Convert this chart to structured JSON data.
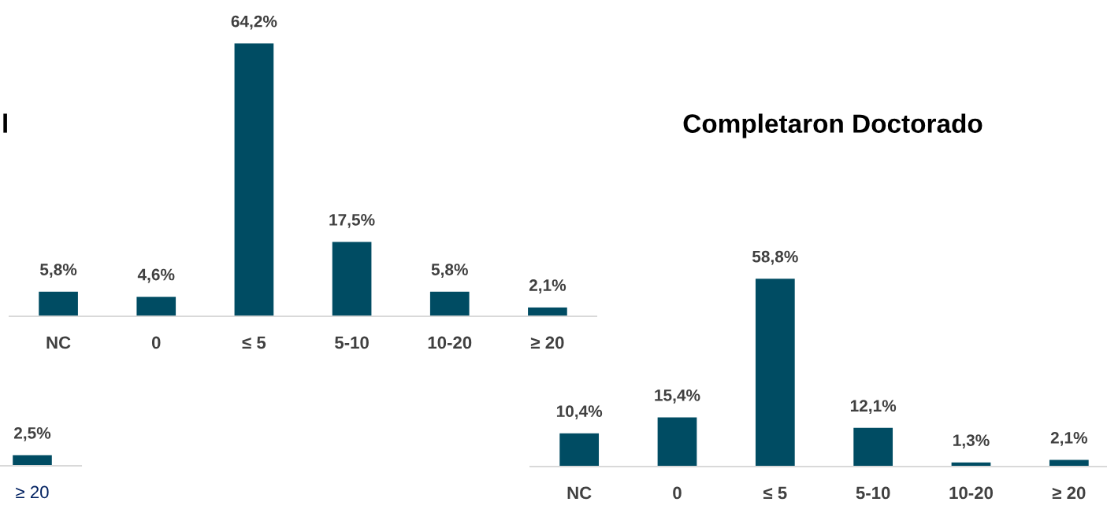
{
  "chart_data": [
    {
      "type": "bar",
      "title": "l",
      "categories": [
        "NC",
        "0",
        "≤ 5",
        "5-10",
        "10-20",
        "≥ 20"
      ],
      "values": [
        5.8,
        4.6,
        64.2,
        17.5,
        5.8,
        2.1
      ],
      "color": "#004c63",
      "value_labels": [
        "5,8%",
        "4,6%",
        "64,2%",
        "17,5%",
        "5,8%",
        "2,1%"
      ]
    },
    {
      "type": "bar",
      "categories": [
        "≥ 20"
      ],
      "values": [
        2.5
      ],
      "color": "#004c63",
      "value_labels": [
        "2,5%"
      ]
    },
    {
      "type": "bar",
      "title": "Completaron Doctorado",
      "categories": [
        "NC",
        "0",
        "≤ 5",
        "5-10",
        "10-20",
        "≥ 20"
      ],
      "values": [
        10.4,
        15.4,
        58.8,
        12.1,
        1.3,
        2.1
      ],
      "color": "#004c63",
      "value_labels": [
        "10,4%",
        "15,4%",
        "58,8%",
        "12,1%",
        "1,3%",
        "2,1%"
      ]
    }
  ]
}
